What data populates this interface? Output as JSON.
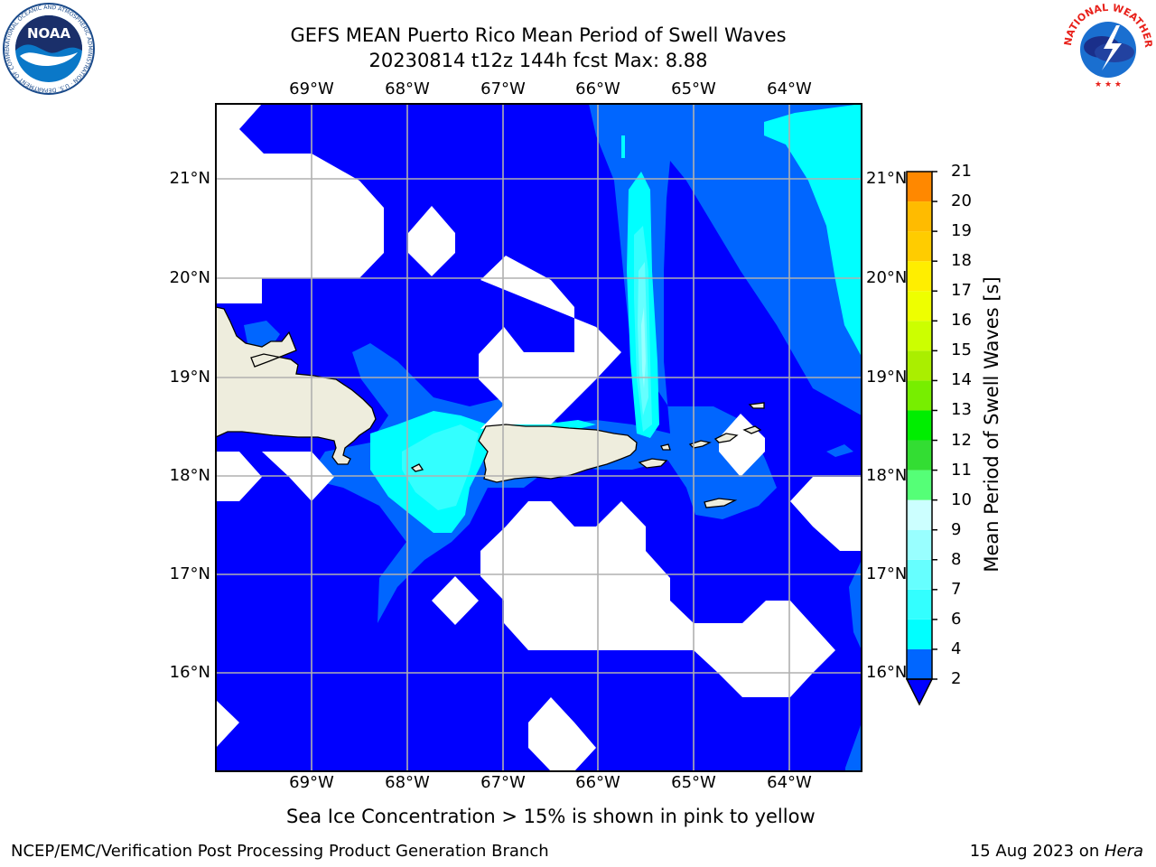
{
  "title": {
    "line1": "GEFS MEAN Puerto Rico Mean Period of Swell Waves",
    "line2": "20230814 t12z 144h fcst   Max: 8.88"
  },
  "map": {
    "lon_labels": [
      "69°W",
      "68°W",
      "67°W",
      "66°W",
      "65°W",
      "64°W"
    ],
    "lat_labels": [
      "21°N",
      "20°N",
      "19°N",
      "18°N",
      "17°N",
      "16°N"
    ],
    "extent": {
      "lon_min": -70.0,
      "lon_max": -63.25,
      "lat_min": 15.0,
      "lat_max": 21.75
    },
    "colors": {
      "land": "#eeeddd",
      "no_data": "#ffffff",
      "below_min": "#0000ff",
      "grid": "#b0b0b0"
    }
  },
  "colorbar": {
    "label": "Mean Period of Swell Waves [s]",
    "ticks": [
      "21",
      "20",
      "19",
      "18",
      "17",
      "16",
      "15",
      "14",
      "13",
      "12",
      "11",
      "10",
      "9",
      "8",
      "7",
      "6",
      "4",
      "2"
    ],
    "levels": [
      2,
      4,
      6,
      7,
      8,
      9,
      10,
      11,
      12,
      13,
      14,
      15,
      16,
      17,
      18,
      19,
      20,
      21
    ],
    "colors": [
      "#0066ff",
      "#00ffff",
      "#33ffff",
      "#66ffff",
      "#99ffff",
      "#ccffff",
      "#55ff77",
      "#33dd33",
      "#00ee00",
      "#77ee00",
      "#aaee00",
      "#ccff00",
      "#eeff00",
      "#ffee00",
      "#ffcc00",
      "#ffbb00",
      "#ff8800",
      "#ff6600",
      "#ff3300",
      "#ff0000"
    ],
    "extend_color": "#0000ff"
  },
  "subtitle": "Sea Ice Concentration > 15% is shown in pink to yellow",
  "footer": {
    "left": "NCEP/EMC/Verification Post Processing Product Generation Branch",
    "date": "15 Aug 2023 on ",
    "host": "Hera"
  },
  "logos": {
    "noaa_text": "NOAA",
    "noaa_ring": "NATIONAL OCEANIC AND ATMOSPHERIC ADMINISTRATION · U.S. DEPARTMENT OF COMMERCE",
    "nws_ring": "NATIONAL WEATHER SERVICE"
  }
}
